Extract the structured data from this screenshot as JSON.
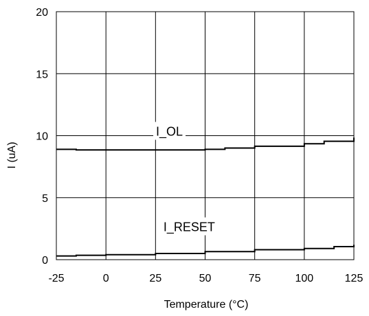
{
  "chart_data": {
    "type": "line",
    "xlabel": "Temperature (°C)",
    "ylabel": "I (uA)",
    "xlim": [
      -25,
      125
    ],
    "ylim": [
      0,
      20
    ],
    "x_ticks": [
      -25,
      0,
      25,
      50,
      75,
      100,
      125
    ],
    "y_ticks": [
      0,
      5,
      10,
      15,
      20
    ],
    "x_tick_labels": [
      "-25",
      "0",
      "25",
      "50",
      "75",
      "100",
      "125"
    ],
    "y_tick_labels": [
      "0",
      "5",
      "10",
      "15",
      "20"
    ],
    "grid": true,
    "legend": "none",
    "series": [
      {
        "name": "I_OL",
        "x": [
          -25,
          -15,
          0,
          25,
          50,
          60,
          75,
          100,
          110,
          125
        ],
        "y": [
          8.9,
          8.85,
          8.85,
          8.85,
          8.9,
          9.0,
          9.15,
          9.35,
          9.55,
          9.85
        ]
      },
      {
        "name": "I_RESET",
        "x": [
          -25,
          -15,
          0,
          25,
          50,
          75,
          100,
          115,
          125
        ],
        "y": [
          0.3,
          0.35,
          0.4,
          0.5,
          0.65,
          0.8,
          0.9,
          1.05,
          1.2
        ]
      }
    ],
    "series_label_anchor": [
      {
        "x": 32,
        "y": 10.0
      },
      {
        "x": 42,
        "y": 2.3
      }
    ]
  }
}
